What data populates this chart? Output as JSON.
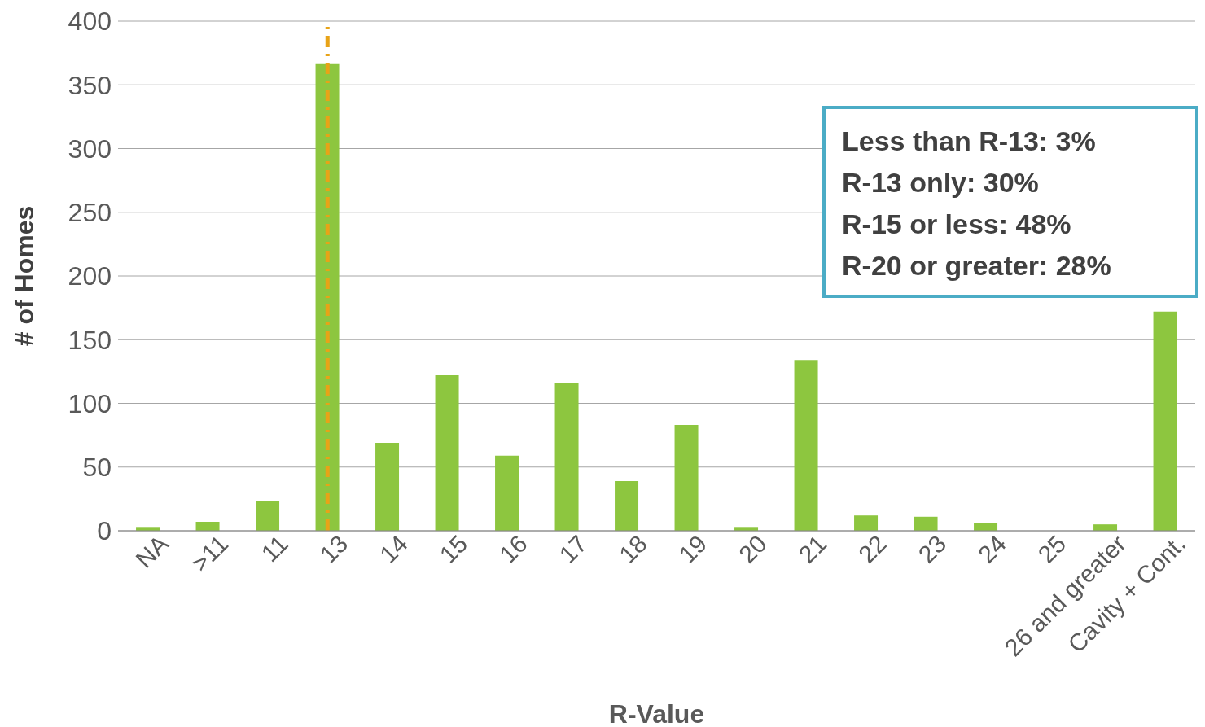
{
  "chart_data": {
    "type": "bar",
    "xlabel": "R-Value",
    "ylabel": "# of Homes",
    "categories": [
      "NA",
      ">11",
      "11",
      "13",
      "14",
      "15",
      "16",
      "17",
      "18",
      "19",
      "20",
      "21",
      "22",
      "23",
      "24",
      "25",
      "26 and greater",
      "Cavity + Cont."
    ],
    "values": [
      3,
      7,
      23,
      367,
      69,
      122,
      59,
      116,
      39,
      83,
      3,
      134,
      12,
      11,
      6,
      0,
      5,
      172
    ],
    "color": "#8dc63f",
    "ylim": [
      0,
      400
    ],
    "yticks": [
      0,
      50,
      100,
      150,
      200,
      250,
      300,
      350,
      400
    ],
    "grid": "y",
    "ref_lines": [
      {
        "axis": "x",
        "value": "13",
        "color": "#e8a317",
        "line_style": "dashed"
      }
    ],
    "annotations": [
      "Less than R-13: 3%",
      "R-13 only: 30%",
      "R-15 or less: 48%",
      "R-20 or greater: 28%"
    ]
  }
}
